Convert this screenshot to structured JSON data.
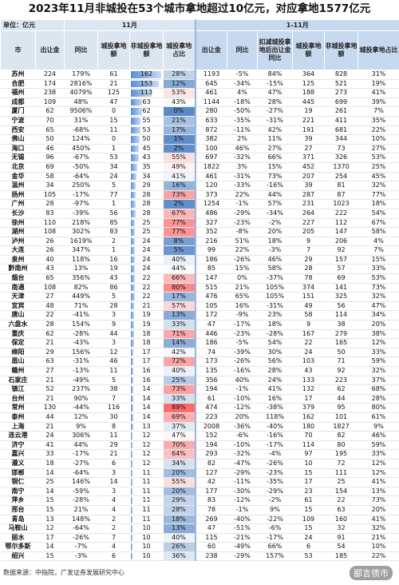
{
  "header": {
    "title": "2023年11月非城投在53个城市拿地超过10亿元，对应拿地1577亿元",
    "unit": "单位：亿元",
    "groups": [
      "11月",
      "1-11月"
    ],
    "columns": [
      "市",
      "出让金",
      "同比",
      "城投拿地额",
      "非城投拿地额",
      "城投拿地占比",
      "出让金",
      "同比",
      "扣减城投拿地后出让金同比",
      "城投拿地额",
      "非城投拿地额",
      "城投拿地占比"
    ]
  },
  "table": {
    "rows": [
      [
        "苏州",
        "224",
        "179%",
        "61",
        "162",
        "28%",
        "1193",
        "-5%",
        "84%",
        "364",
        "828",
        "31%"
      ],
      [
        "合肥",
        "174",
        "2816%",
        "21",
        "153",
        "12%",
        "645",
        "-34%",
        "-15%",
        "125",
        "521",
        "19%"
      ],
      [
        "福州",
        "238",
        "4079%",
        "125",
        "113",
        "53%",
        "461",
        "4%",
        "47%",
        "188",
        "273",
        "41%"
      ],
      [
        "成都",
        "109",
        "48%",
        "47",
        "63",
        "43%",
        "1144",
        "-18%",
        "28%",
        "445",
        "699",
        "39%"
      ],
      [
        "厦门",
        "62",
        "9506%",
        "0",
        "62",
        "0%",
        "280",
        "-50%",
        "-27%",
        "19",
        "261",
        "7%"
      ],
      [
        "宁波",
        "70",
        "31%",
        "15",
        "55",
        "21%",
        "633",
        "-35%",
        "-31%",
        "221",
        "411",
        "35%"
      ],
      [
        "西安",
        "65",
        "-68%",
        "11",
        "53",
        "17%",
        "872",
        "-11%",
        "42%",
        "191",
        "681",
        "22%"
      ],
      [
        "佛山",
        "50",
        "124%",
        "0",
        "50",
        "1%",
        "382",
        "2%",
        "11%",
        "39",
        "344",
        "10%"
      ],
      [
        "海口",
        "46",
        "450%",
        "1",
        "45",
        "2%",
        "100",
        "46%",
        "27%",
        "27",
        "73",
        "27%"
      ],
      [
        "无锡",
        "96",
        "-67%",
        "53",
        "43",
        "55%",
        "697",
        "-32%",
        "66%",
        "371",
        "326",
        "53%"
      ],
      [
        "北京",
        "69",
        "-50%",
        "34",
        "35",
        "49%",
        "1822",
        "3%",
        "15%",
        "452",
        "1370",
        "25%"
      ],
      [
        "金华",
        "58",
        "-64%",
        "24",
        "34",
        "41%",
        "461",
        "-31%",
        "73%",
        "207",
        "254",
        "45%"
      ],
      [
        "温州",
        "34",
        "250%",
        "5",
        "29",
        "16%",
        "120",
        "-33%",
        "-16%",
        "39",
        "81",
        "32%"
      ],
      [
        "扬州",
        "105",
        "-17%",
        "77",
        "28",
        "73%",
        "373",
        "22%",
        "44%",
        "287",
        "87",
        "77%"
      ],
      [
        "广州",
        "28",
        "-97%",
        "1",
        "28",
        "2%",
        "1254",
        "-1%",
        "57%",
        "231",
        "1023",
        "18%"
      ],
      [
        "长沙",
        "83",
        "-39%",
        "56",
        "28",
        "67%",
        "486",
        "-29%",
        "-34%",
        "264",
        "222",
        "54%"
      ],
      [
        "徐州",
        "110",
        "218%",
        "85",
        "25",
        "77%",
        "327",
        "-23%",
        "-2%",
        "227",
        "112",
        "67%"
      ],
      [
        "湖州",
        "108",
        "302%",
        "83",
        "25",
        "77%",
        "352",
        "-8%",
        "20%",
        "205",
        "147",
        "58%"
      ],
      [
        "泸州",
        "26",
        "1619%",
        "2",
        "24",
        "8%",
        "216",
        "51%",
        "18%",
        "9",
        "206",
        "4%"
      ],
      [
        "大连",
        "26",
        "347%",
        "1",
        "24",
        "5%",
        "99",
        "22%",
        "-3%",
        "7",
        "92",
        "7%"
      ],
      [
        "泉州",
        "40",
        "118%",
        "16",
        "24",
        "40%",
        "186",
        "-26%",
        "46%",
        "29",
        "157",
        "15%"
      ],
      [
        "黔南州",
        "43",
        "13%",
        "19",
        "24",
        "44%",
        "85",
        "15%",
        "58%",
        "28",
        "57",
        "33%"
      ],
      [
        "烟台",
        "65",
        "356%",
        "43",
        "22",
        "66%",
        "147",
        "0%",
        "-37%",
        "78",
        "69",
        "53%"
      ],
      [
        "南通",
        "108",
        "82%",
        "86",
        "22",
        "80%",
        "515",
        "21%",
        "105%",
        "374",
        "141",
        "73%"
      ],
      [
        "天津",
        "27",
        "449%",
        "5",
        "22",
        "17%",
        "476",
        "65%",
        "105%",
        "151",
        "325",
        "32%"
      ],
      [
        "宜宾",
        "48",
        "71%",
        "28",
        "21",
        "57%",
        "105",
        "16%",
        "-31%",
        "49",
        "56",
        "47%"
      ],
      [
        "唐山",
        "22",
        "-41%",
        "3",
        "19",
        "13%",
        "172",
        "-9%",
        "23%",
        "58",
        "114",
        "34%"
      ],
      [
        "六盘水",
        "28",
        "154%",
        "9",
        "19",
        "33%",
        "47",
        "-17%",
        "18%",
        "9",
        "38",
        "20%"
      ],
      [
        "重庆",
        "62",
        "-28%",
        "44",
        "18",
        "71%",
        "446",
        "-23%",
        "-28%",
        "167",
        "279",
        "38%"
      ],
      [
        "保定",
        "21",
        "-43%",
        "3",
        "18",
        "14%",
        "186",
        "-5%",
        "54%",
        "22",
        "165",
        "12%"
      ],
      [
        "绵阳",
        "29",
        "156%",
        "12",
        "17",
        "42%",
        "74",
        "-39%",
        "30%",
        "24",
        "50",
        "33%"
      ],
      [
        "眉山",
        "63",
        "-31%",
        "46",
        "17",
        "72%",
        "173",
        "-26%",
        "56%",
        "103",
        "71",
        "59%"
      ],
      [
        "赣州",
        "27",
        "-13%",
        "11",
        "16",
        "40%",
        "135",
        "-16%",
        "28%",
        "43",
        "92",
        "32%"
      ],
      [
        "石家庄",
        "21",
        "-49%",
        "5",
        "16",
        "25%",
        "356",
        "40%",
        "24%",
        "133",
        "223",
        "37%"
      ],
      [
        "镇江",
        "52",
        "237%",
        "38",
        "14",
        "73%",
        "194",
        "-1%",
        "41%",
        "132",
        "62",
        "68%"
      ],
      [
        "台州",
        "21",
        "90%",
        "7",
        "14",
        "33%",
        "61",
        "-10%",
        "16%",
        "17",
        "44",
        "28%"
      ],
      [
        "常州",
        "130",
        "-44%",
        "116",
        "14",
        "89%",
        "474",
        "-12%",
        "-38%",
        "379",
        "95",
        "80%"
      ],
      [
        "泰州",
        "44",
        "12%",
        "30",
        "14",
        "69%",
        "223",
        "20%",
        "118%",
        "162",
        "101",
        "61%"
      ],
      [
        "上海",
        "21",
        "9%",
        "8",
        "13",
        "37%",
        "2008",
        "-36%",
        "-40%",
        "180",
        "1827",
        "9%"
      ],
      [
        "连云港",
        "24",
        "306%",
        "11",
        "12",
        "47%",
        "152",
        "-6%",
        "-16%",
        "70",
        "82",
        "46%"
      ],
      [
        "济宁",
        "41",
        "44%",
        "29",
        "12",
        "70%",
        "194",
        "-10%",
        "-17%",
        "114",
        "80",
        "59%"
      ],
      [
        "嘉兴",
        "33",
        "-17%",
        "21",
        "12",
        "64%",
        "293",
        "-32%",
        "-4%",
        "97",
        "195",
        "33%"
      ],
      [
        "遵义",
        "18",
        "-27%",
        "6",
        "12",
        "34%",
        "82",
        "-47%",
        "-26%",
        "10",
        "72",
        "12%"
      ],
      [
        "邯郸",
        "14",
        "-64%",
        "3",
        "11",
        "20%",
        "127",
        "-29%",
        "-23%",
        "15",
        "111",
        "12%"
      ],
      [
        "铜仁",
        "25",
        "146%",
        "14",
        "11",
        "55%",
        "42",
        "-11%",
        "-35%",
        "17",
        "25",
        "41%"
      ],
      [
        "南宁",
        "14",
        "-59%",
        "3",
        "11",
        "20%",
        "177",
        "-30%",
        "-29%",
        "23",
        "154",
        "13%"
      ],
      [
        "萍乡",
        "15",
        "-28%",
        "4",
        "11",
        "29%",
        "83",
        "-12%",
        "-2%",
        "61",
        "22",
        "73%"
      ],
      [
        "邢台",
        "15",
        "21%",
        "4",
        "11",
        "28%",
        "78",
        "-1%",
        "9%",
        "15",
        "63",
        "20%"
      ],
      [
        "青岛",
        "13",
        "148%",
        "2",
        "11",
        "18%",
        "269",
        "-40%",
        "-22%",
        "109",
        "160",
        "41%"
      ],
      [
        "马鞍山",
        "12",
        "-64%",
        "2",
        "10",
        "13%",
        "47",
        "-51%",
        "-6%",
        "15",
        "32",
        "32%"
      ],
      [
        "丽水",
        "17",
        "-26%",
        "7",
        "10",
        "40%",
        "115",
        "-21%",
        "-17%",
        "24",
        "91",
        "21%"
      ],
      [
        "鄂尔多斯",
        "14",
        "-7%",
        "4",
        "10",
        "26%",
        "60",
        "-49%",
        "66%",
        "6",
        "54",
        "10%"
      ],
      [
        "绍兴",
        "15",
        "-3%",
        "6",
        "10",
        "36%",
        "238",
        "-29%",
        "157%",
        "53",
        "185",
        "22%"
      ]
    ]
  },
  "footer": {
    "source": "数据来源：中指院，广发证券发展研究中心",
    "watermark": "鄙言债市"
  }
}
